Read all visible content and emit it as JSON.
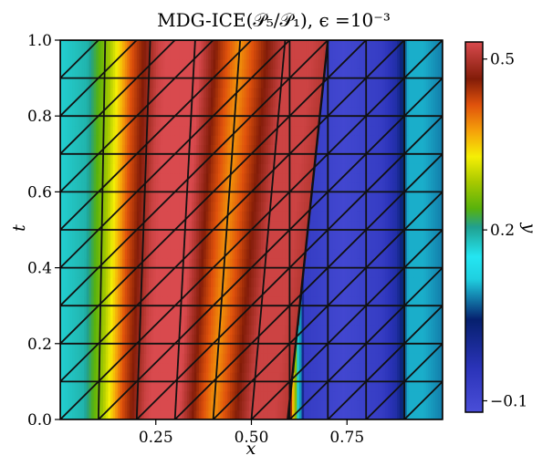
{
  "chart_data": {
    "type": "heatmap",
    "title": "MDG-ICE(𝒫₅/𝒫₁), ϵ =10⁻³",
    "xlabel": "x",
    "ylabel": "t",
    "xlim": [
      0,
      1
    ],
    "ylim": [
      0,
      1
    ],
    "x_ticks": [
      0.25,
      0.5,
      0.75
    ],
    "x_tick_labels": [
      "0.25",
      "0.50",
      "0.75"
    ],
    "y_ticks": [
      0.0,
      0.2,
      0.4,
      0.6,
      0.8,
      1.0
    ],
    "y_tick_labels": [
      "0.0",
      "0.2",
      "0.4",
      "0.6",
      "0.8",
      "1.0"
    ],
    "colorbar": {
      "label": "y",
      "range": [
        -0.12,
        0.53
      ],
      "ticks": [
        -0.1,
        0.2,
        0.5
      ],
      "tick_labels": [
        "−0.1",
        "0.2",
        "0.5"
      ],
      "colormap": "jet-like"
    },
    "x_profile": [
      {
        "x": 0.0,
        "y": 0.17
      },
      {
        "x": 0.06,
        "y": 0.19
      },
      {
        "x": 0.11,
        "y": 0.28
      },
      {
        "x": 0.16,
        "y": 0.42
      },
      {
        "x": 0.22,
        "y": 0.52
      },
      {
        "x": 0.27,
        "y": 0.55
      },
      {
        "x": 0.31,
        "y": 0.53
      },
      {
        "x": 0.36,
        "y": 0.44
      },
      {
        "x": 0.4,
        "y": 0.38
      },
      {
        "x": 0.45,
        "y": 0.45
      },
      {
        "x": 0.5,
        "y": 0.52
      },
      {
        "x": 0.56,
        "y": 0.52
      },
      {
        "x": 0.6,
        "y": 0.5
      },
      {
        "x": 0.62,
        "y": 0.2
      },
      {
        "x": 0.64,
        "y": -0.07
      },
      {
        "x": 0.74,
        "y": -0.1
      },
      {
        "x": 0.84,
        "y": -0.07
      },
      {
        "x": 0.88,
        "y": -0.02
      },
      {
        "x": 0.91,
        "y": 0.1
      },
      {
        "x": 0.95,
        "y": 0.1
      },
      {
        "x": 1.0,
        "y": 0.08
      }
    ],
    "shock": {
      "x_at_t0": 0.595,
      "x_at_t1": 0.7
    },
    "mesh_grid_lines": 10
  }
}
